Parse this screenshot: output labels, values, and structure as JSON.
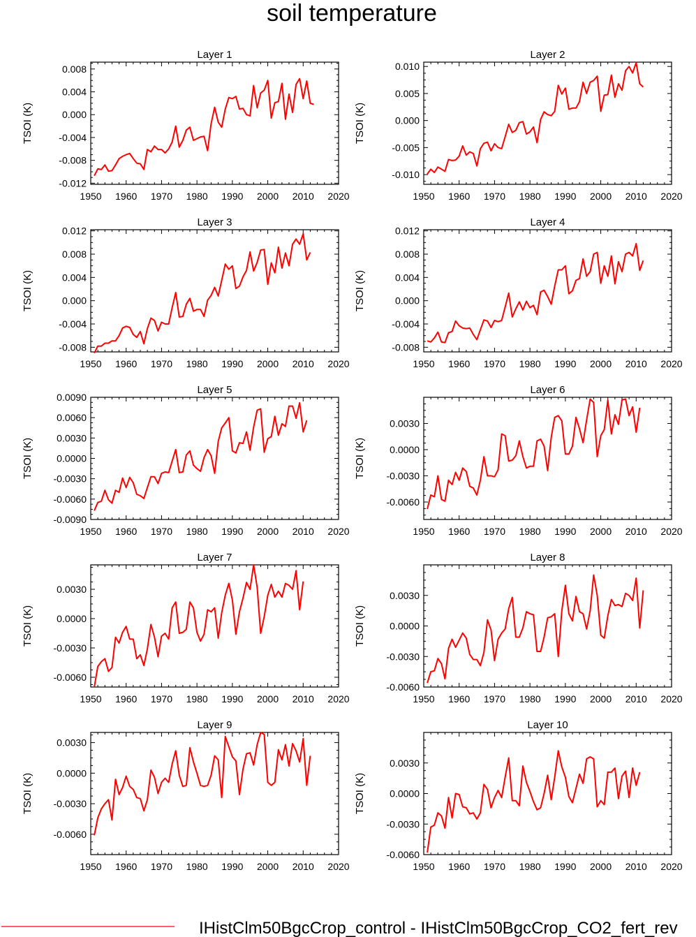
{
  "title": "soil temperature",
  "legend": {
    "label": "IHistClm50BgcCrop_control - IHistClm50BgcCrop_CO2_fert_rev",
    "color": "#ff0000"
  },
  "line_color": "#ff0000",
  "chart_data": [
    {
      "type": "line",
      "title": "Layer 1",
      "ylabel": "TSOI  (K)",
      "xlim": [
        1950,
        2020
      ],
      "ylim": [
        -0.0122,
        0.0092
      ],
      "xticks": [
        1950,
        1960,
        1970,
        1980,
        1990,
        2000,
        2010,
        2020
      ],
      "yticks": [
        -0.012,
        -0.008,
        -0.004,
        0.0,
        0.004,
        0.008
      ],
      "ydec": 3,
      "x0": 1951,
      "values": [
        -0.0107,
        -0.0095,
        -0.0096,
        -0.0088,
        -0.0099,
        -0.0098,
        -0.0088,
        -0.0077,
        -0.0073,
        -0.007,
        -0.0068,
        -0.0077,
        -0.0085,
        -0.0086,
        -0.0096,
        -0.0061,
        -0.0065,
        -0.0055,
        -0.0061,
        -0.0061,
        -0.0067,
        -0.006,
        -0.0048,
        -0.002,
        -0.0057,
        -0.0045,
        -0.0027,
        -0.0022,
        -0.0045,
        -0.0042,
        -0.0039,
        -0.0038,
        -0.0063,
        -0.0016,
        0.0013,
        -0.0013,
        -0.0022,
        0.001,
        0.003,
        0.0028,
        0.0032,
        0.001,
        0.0011,
        0.0,
        -0.0002,
        0.0051,
        0.0012,
        0.0038,
        0.0043,
        0.006,
        -0.0006,
        0.0021,
        0.0023,
        0.0055,
        -0.0008,
        0.0036,
        0.0004,
        0.0053,
        0.0063,
        0.0028,
        0.0059,
        0.002,
        0.0018
      ]
    },
    {
      "type": "line",
      "title": "Layer 2",
      "ylabel": "TSOI  (K)",
      "xlim": [
        1950,
        2020
      ],
      "ylim": [
        -0.0118,
        0.0108
      ],
      "xticks": [
        1950,
        1960,
        1970,
        1980,
        1990,
        2000,
        2010,
        2020
      ],
      "yticks": [
        -0.01,
        -0.005,
        0.0,
        0.005,
        0.01
      ],
      "ydec": 3,
      "x0": 1951,
      "values": [
        -0.0099,
        -0.009,
        -0.0096,
        -0.0086,
        -0.009,
        -0.0094,
        -0.0072,
        -0.0074,
        -0.0073,
        -0.0066,
        -0.0047,
        -0.0064,
        -0.0058,
        -0.0061,
        -0.0084,
        -0.0052,
        -0.0042,
        -0.004,
        -0.0056,
        -0.0043,
        -0.005,
        -0.0052,
        -0.003,
        -0.0007,
        -0.0022,
        -0.0018,
        -0.0004,
        -0.0002,
        -0.0025,
        -0.0021,
        -0.0012,
        -0.0041,
        0.0002,
        0.0016,
        0.0011,
        0.0009,
        0.0017,
        0.0065,
        0.0049,
        0.006,
        0.0021,
        0.0023,
        0.0023,
        0.0035,
        0.0071,
        0.005,
        0.0071,
        0.0074,
        0.0082,
        0.0017,
        0.0047,
        0.0048,
        0.0084,
        0.0043,
        0.0068,
        0.0056,
        0.0092,
        0.01,
        0.0088,
        0.0107,
        0.0068,
        0.0062
      ]
    },
    {
      "type": "line",
      "title": "Layer 3",
      "ylabel": "TSOI  (K)",
      "xlim": [
        1950,
        2020
      ],
      "ylim": [
        -0.0088,
        0.0122
      ],
      "xticks": [
        1950,
        1960,
        1970,
        1980,
        1990,
        2000,
        2010,
        2020
      ],
      "yticks": [
        -0.008,
        -0.004,
        0.0,
        0.004,
        0.008,
        0.012
      ],
      "ydec": 3,
      "x0": 1951,
      "values": [
        -0.009,
        -0.0078,
        -0.0078,
        -0.0073,
        -0.0073,
        -0.0069,
        -0.0069,
        -0.006,
        -0.0047,
        -0.0044,
        -0.0046,
        -0.0058,
        -0.0063,
        -0.0053,
        -0.0074,
        -0.0048,
        -0.003,
        -0.0034,
        -0.0052,
        -0.0037,
        -0.004,
        -0.004,
        -0.0012,
        0.0014,
        -0.0028,
        -0.0027,
        -0.0006,
        0.0004,
        -0.0018,
        -0.0015,
        -0.0015,
        -0.0027,
        0.0001,
        0.0009,
        0.0023,
        0.0008,
        0.0035,
        0.0063,
        0.0054,
        0.006,
        0.0021,
        0.0025,
        0.0041,
        0.0052,
        0.0084,
        0.0051,
        0.0066,
        0.0087,
        0.0088,
        0.0028,
        0.0065,
        0.0048,
        0.0092,
        0.0056,
        0.0082,
        0.006,
        0.0097,
        0.0106,
        0.0097,
        0.0115,
        0.007,
        0.0083
      ]
    },
    {
      "type": "line",
      "title": "Layer 4",
      "ylabel": "TSOI  (K)",
      "xlim": [
        1950,
        2020
      ],
      "ylim": [
        -0.0088,
        0.0122
      ],
      "xticks": [
        1950,
        1960,
        1970,
        1980,
        1990,
        2000,
        2010,
        2020
      ],
      "yticks": [
        -0.008,
        -0.004,
        0.0,
        0.004,
        0.008,
        0.012
      ],
      "ydec": 3,
      "x0": 1951,
      "values": [
        -0.0069,
        -0.0071,
        -0.0064,
        -0.0054,
        -0.0071,
        -0.0072,
        -0.0055,
        -0.0053,
        -0.0035,
        -0.0043,
        -0.0047,
        -0.0048,
        -0.0047,
        -0.0058,
        -0.0067,
        -0.005,
        -0.0033,
        -0.0035,
        -0.0046,
        -0.0034,
        -0.0036,
        -0.0034,
        -0.0011,
        0.0013,
        -0.0028,
        -0.0014,
        -0.0002,
        -0.0016,
        -0.0001,
        -0.0012,
        -0.0008,
        -0.0024,
        0.0015,
        0.0018,
        0.0007,
        -0.0006,
        0.0025,
        0.0053,
        0.0053,
        0.006,
        0.0012,
        0.0017,
        0.0035,
        0.0038,
        0.0072,
        0.0042,
        0.005,
        0.008,
        0.0083,
        0.003,
        0.006,
        0.0042,
        0.0077,
        0.0029,
        0.0067,
        0.005,
        0.008,
        0.0083,
        0.0077,
        0.0098,
        0.0052,
        0.0069
      ]
    },
    {
      "type": "line",
      "title": "Layer 5",
      "ylabel": "TSOI  (K)",
      "xlim": [
        1950,
        2020
      ],
      "ylim": [
        -0.009,
        0.009
      ],
      "xticks": [
        1950,
        1960,
        1970,
        1980,
        1990,
        2000,
        2010,
        2020
      ],
      "yticks": [
        -0.009,
        -0.006,
        -0.003,
        0.0,
        0.003,
        0.006,
        0.009
      ],
      "ydec": 4,
      "x0": 1951,
      "values": [
        -0.0077,
        -0.0065,
        -0.0063,
        -0.0047,
        -0.0061,
        -0.0066,
        -0.0047,
        -0.005,
        -0.0029,
        -0.0043,
        -0.0028,
        -0.0036,
        -0.0053,
        -0.0055,
        -0.0059,
        -0.0043,
        -0.0027,
        -0.0027,
        -0.0037,
        -0.0022,
        -0.002,
        -0.0021,
        -0.0004,
        0.0013,
        -0.0021,
        -0.002,
        0.0005,
        0.0011,
        -0.001,
        -0.0015,
        -0.0019,
        0.0001,
        0.0013,
        0.0004,
        -0.0022,
        0.0025,
        0.0045,
        0.0052,
        0.006,
        0.0011,
        0.0008,
        0.0023,
        0.0022,
        0.0039,
        0.0012,
        0.0046,
        0.0071,
        0.0073,
        0.0009,
        0.0029,
        0.0032,
        0.0062,
        0.0034,
        0.0051,
        0.0047,
        0.0077,
        0.0077,
        0.0059,
        0.0082,
        0.0039,
        0.0056
      ]
    },
    {
      "type": "line",
      "title": "Layer 6",
      "ylabel": "TSOI  (K)",
      "xlim": [
        1950,
        2020
      ],
      "ylim": [
        -0.008,
        0.006
      ],
      "xticks": [
        1950,
        1960,
        1970,
        1980,
        1990,
        2000,
        2010,
        2020
      ],
      "yticks": [
        -0.006,
        -0.003,
        0.0,
        0.003
      ],
      "ydec": 4,
      "x0": 1951,
      "values": [
        -0.0068,
        -0.0052,
        -0.0054,
        -0.003,
        -0.0057,
        -0.0059,
        -0.0035,
        -0.004,
        -0.0026,
        -0.0035,
        -0.0021,
        -0.0025,
        -0.0042,
        -0.0044,
        -0.0052,
        -0.0035,
        -0.0008,
        -0.003,
        -0.003,
        -0.0031,
        -0.0023,
        0.0018,
        0.0016,
        -0.0013,
        -0.0012,
        -0.0007,
        0.001,
        -0.0008,
        -0.0021,
        -0.0019,
        -0.0019,
        0.001,
        0.0012,
        0.0004,
        -0.0024,
        0.0014,
        0.0037,
        0.0039,
        0.0033,
        -0.0005,
        -0.0005,
        0.0004,
        0.0037,
        0.0024,
        0.0008,
        0.0034,
        0.0058,
        0.0054,
        -0.0008,
        0.0016,
        0.0023,
        0.0057,
        0.0018,
        0.004,
        0.0029,
        0.0057,
        0.0058,
        0.0039,
        0.0049,
        0.002,
        0.0048
      ]
    },
    {
      "type": "line",
      "title": "Layer 7",
      "ylabel": "TSOI  (K)",
      "xlim": [
        1950,
        2020
      ],
      "ylim": [
        -0.007,
        0.0055
      ],
      "xticks": [
        1950,
        1960,
        1970,
        1980,
        1990,
        2000,
        2010,
        2020
      ],
      "yticks": [
        -0.006,
        -0.003,
        0.0,
        0.003
      ],
      "ydec": 4,
      "x0": 1951,
      "values": [
        -0.007,
        -0.0049,
        -0.0044,
        -0.0041,
        -0.0054,
        -0.005,
        -0.0019,
        -0.0025,
        -0.0014,
        -0.0008,
        -0.0021,
        -0.0021,
        -0.0041,
        -0.0037,
        -0.0048,
        -0.0031,
        -0.0006,
        -0.0019,
        -0.0039,
        -0.0018,
        -0.0015,
        -0.0021,
        0.0011,
        0.0017,
        -0.0015,
        -0.0014,
        -0.0011,
        0.0017,
        0.0011,
        -0.0014,
        -0.0023,
        -0.0016,
        0.0009,
        0.0007,
        0.0011,
        -0.002,
        0.0006,
        0.0024,
        0.0036,
        0.0019,
        -0.0016,
        0.0007,
        0.0021,
        0.0037,
        0.003,
        0.0055,
        0.0032,
        -0.0015,
        0.0002,
        0.0024,
        0.0035,
        0.0022,
        0.0028,
        0.0022,
        0.0036,
        0.0034,
        0.003,
        0.0049,
        0.0009,
        0.0038
      ]
    },
    {
      "type": "line",
      "title": "Layer 8",
      "ylabel": "TSOI  (K)",
      "xlim": [
        1950,
        2020
      ],
      "ylim": [
        -0.006,
        0.006
      ],
      "xticks": [
        1950,
        1960,
        1970,
        1980,
        1990,
        2000,
        2010,
        2020
      ],
      "yticks": [
        -0.006,
        -0.003,
        0.0,
        0.003
      ],
      "ydec": 4,
      "x0": 1951,
      "values": [
        -0.0056,
        -0.0045,
        -0.0044,
        -0.0032,
        -0.0037,
        -0.0052,
        -0.0022,
        -0.0013,
        -0.0021,
        -0.0014,
        -0.0007,
        -0.0012,
        -0.0028,
        -0.0033,
        -0.0033,
        -0.0039,
        -0.0026,
        0.0006,
        -0.0004,
        -0.0034,
        -0.0013,
        -0.0007,
        -0.0003,
        0.0017,
        0.0028,
        -0.0011,
        -0.0011,
        -0.0002,
        0.0014,
        0.0012,
        0.0011,
        -0.0025,
        -0.0025,
        -0.0011,
        0.0008,
        0.0009,
        0.0012,
        -0.003,
        0.0015,
        0.004,
        0.0012,
        0.0005,
        0.0029,
        0.0014,
        0.0012,
        -0.0003,
        0.0015,
        0.005,
        0.003,
        -0.0009,
        -0.0012,
        0.001,
        0.0026,
        0.002,
        0.0021,
        0.0019,
        0.0032,
        0.003,
        0.0025,
        0.0047,
        -0.0002,
        0.0035
      ]
    },
    {
      "type": "line",
      "title": "Layer 9",
      "ylabel": "TSOI  (K)",
      "xlim": [
        1950,
        2020
      ],
      "ylim": [
        -0.008,
        0.004
      ],
      "xticks": [
        1950,
        1960,
        1970,
        1980,
        1990,
        2000,
        2010,
        2020
      ],
      "yticks": [
        -0.006,
        -0.003,
        0.0,
        0.003
      ],
      "ydec": 4,
      "x0": 1951,
      "values": [
        -0.0061,
        -0.0044,
        -0.0035,
        -0.003,
        -0.0026,
        -0.0046,
        -0.0006,
        -0.0021,
        -0.0014,
        -0.0003,
        -0.0013,
        -0.0016,
        -0.0024,
        -0.0025,
        -0.0037,
        -0.0026,
        0.0003,
        -0.0004,
        -0.002,
        -0.0009,
        -0.0005,
        -0.0009,
        0.0009,
        0.0022,
        -0.0002,
        -0.0013,
        -0.0012,
        0.0025,
        0.0011,
        0.0,
        -0.0012,
        -0.0013,
        -0.0012,
        -0.0002,
        0.0017,
        0.0013,
        -0.0024,
        0.0036,
        0.0026,
        0.0016,
        0.0012,
        -0.0021,
        0.0004,
        0.0019,
        0.002,
        0.0008,
        0.0028,
        0.004,
        0.0038,
        -0.0009,
        -0.0012,
        -0.0009,
        0.0023,
        0.0013,
        0.0028,
        0.0007,
        0.0029,
        0.0022,
        0.0011,
        0.0034,
        -0.0012,
        0.0017
      ]
    },
    {
      "type": "line",
      "title": "Layer 10",
      "ylabel": "TSOI  (K)",
      "xlim": [
        1950,
        2020
      ],
      "ylim": [
        -0.006,
        0.006
      ],
      "xticks": [
        1950,
        1960,
        1970,
        1980,
        1990,
        2000,
        2010,
        2020
      ],
      "yticks": [
        -0.006,
        -0.003,
        0.0,
        0.003
      ],
      "ydec": 4,
      "x0": 1951,
      "values": [
        -0.0058,
        -0.0033,
        -0.0031,
        -0.0019,
        -0.0022,
        -0.0034,
        -0.0004,
        -0.0024,
        0.0,
        -0.0001,
        -0.0013,
        -0.0014,
        -0.002,
        -0.0019,
        -0.0025,
        -0.0019,
        0.0009,
        0.0004,
        -0.0014,
        -0.0004,
        0.0003,
        -0.0004,
        0.0016,
        0.0035,
        -0.0007,
        -0.0007,
        -0.0012,
        0.0027,
        0.0011,
        0.0002,
        -0.0008,
        -0.0016,
        -0.0014,
        0.0,
        0.0018,
        -0.0006,
        0.0016,
        0.0042,
        0.0026,
        0.0016,
        -0.0003,
        -0.0009,
        0.0005,
        0.0019,
        0.001,
        0.0034,
        0.0036,
        0.0034,
        -0.0013,
        -0.0007,
        -0.0011,
        0.0021,
        0.0021,
        0.0025,
        -0.0005,
        0.0017,
        0.0022,
        -0.0004,
        0.0025,
        0.0008,
        0.0021
      ]
    }
  ]
}
